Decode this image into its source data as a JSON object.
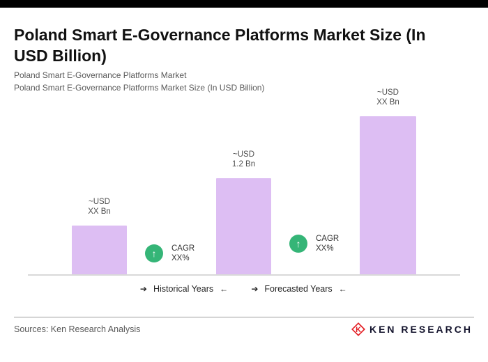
{
  "header": {
    "title": "Poland Smart E-Governance Platforms Market Size (In USD Billion)",
    "subtitle_line1": "Poland Smart E-Governance Platforms Market",
    "subtitle_line2": "Poland Smart E-Governance Platforms Market Size (In USD Billion)"
  },
  "chart_data": {
    "type": "bar",
    "title": "Poland Smart E-Governance Platforms Market Size (In USD Billion)",
    "unit": "USD Billion",
    "bar_color": "#DDBEF3",
    "bars": [
      {
        "value_line1": "~USD",
        "value_line2": "XX Bn",
        "value": null,
        "relative_height": 0.31
      },
      {
        "value_line1": "~USD",
        "value_line2": "1.2 Bn",
        "value": 1.2,
        "relative_height": 0.61
      },
      {
        "value_line1": "~USD",
        "value_line2": "XX Bn",
        "value": null,
        "relative_height": 1.0
      }
    ],
    "annotations": [
      {
        "line1": "CAGR",
        "line2": "XX%"
      },
      {
        "line1": "CAGR",
        "line2": "XX%"
      }
    ],
    "annotation_icon": {
      "glyph": "↑",
      "color": "#35B577"
    },
    "axis_groups": [
      {
        "arrow_left": "➔",
        "label": "Historical Years",
        "arrow_right": "←"
      },
      {
        "arrow_left": "➔",
        "label": "Forecasted Years",
        "arrow_right": "←"
      }
    ],
    "legend": "none",
    "grid": "off"
  },
  "footer": {
    "sources": "Sources: Ken Research Analysis",
    "logo_text": "KEN RESEARCH",
    "logo_color": "#E31E24"
  }
}
